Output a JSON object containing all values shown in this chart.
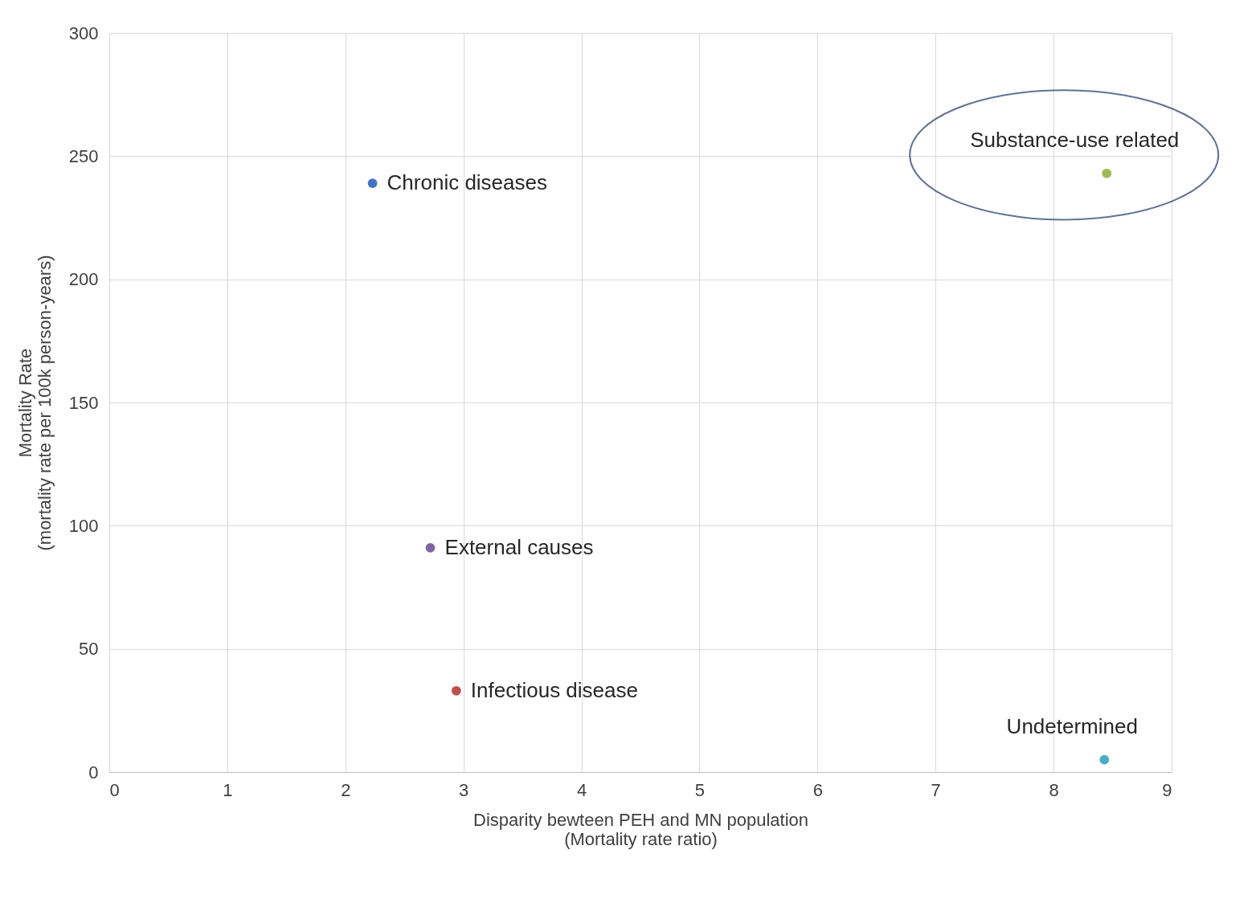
{
  "chart_data": {
    "type": "scatter",
    "xlabel": "Disparity bewteen PEH and MN population\n(Mortality rate ratio)",
    "ylabel": "Mortality Rate\n(mortality rate per 100k person-years)",
    "xlim": [
      0,
      9
    ],
    "xticks": [
      0,
      1,
      2,
      3,
      4,
      5,
      6,
      7,
      8,
      9
    ],
    "ylim": [
      0,
      300
    ],
    "yticks": [
      0,
      50,
      100,
      150,
      200,
      250,
      300
    ],
    "grid": true,
    "legend": false,
    "marker": "circle",
    "series": [
      {
        "name": "Chronic diseases",
        "color": "#4472c4",
        "x": [
          2.23
        ],
        "values": [
          239
        ]
      },
      {
        "name": "External causes",
        "color": "#8064a2",
        "x": [
          2.72
        ],
        "values": [
          91
        ]
      },
      {
        "name": "Infectious disease",
        "color": "#c0504d",
        "x": [
          2.94
        ],
        "values": [
          33
        ]
      },
      {
        "name": "Substance-use related",
        "color": "#9bbb59",
        "x": [
          8.45
        ],
        "values": [
          243
        ]
      },
      {
        "name": "Undetermined",
        "color": "#4bacc6",
        "x": [
          8.43
        ],
        "values": [
          5
        ]
      }
    ]
  }
}
